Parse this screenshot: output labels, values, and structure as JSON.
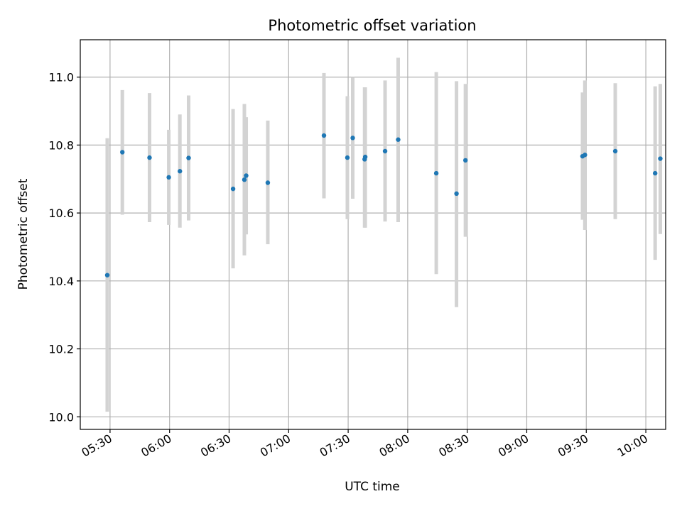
{
  "chart_data": {
    "type": "scatter",
    "title": "Photometric offset variation",
    "xlabel": "UTC time",
    "ylabel": "Photometric offset",
    "x_tick_labels": [
      "05:30",
      "06:00",
      "06:30",
      "07:00",
      "07:30",
      "08:00",
      "08:30",
      "09:00",
      "09:30",
      "10:00"
    ],
    "x_tick_minutes": [
      330,
      360,
      390,
      420,
      450,
      480,
      510,
      540,
      570,
      600
    ],
    "xlim_minutes": [
      315,
      610
    ],
    "y_tick_labels": [
      "10.0",
      "10.2",
      "10.4",
      "10.6",
      "10.8",
      "11.0"
    ],
    "y_ticks": [
      10.0,
      10.2,
      10.4,
      10.6,
      10.8,
      11.0
    ],
    "ylim": [
      9.963,
      11.11
    ],
    "grid": true,
    "point_color": "#1f77b4",
    "errorbar_color": "#d3d3d3",
    "points": [
      {
        "t": 328.6,
        "y": 10.417,
        "lo": 10.015,
        "hi": 10.82
      },
      {
        "t": 336.2,
        "y": 10.779,
        "lo": 10.595,
        "hi": 10.962
      },
      {
        "t": 349.9,
        "y": 10.763,
        "lo": 10.573,
        "hi": 10.953
      },
      {
        "t": 359.6,
        "y": 10.705,
        "lo": 10.565,
        "hi": 10.845
      },
      {
        "t": 365.2,
        "y": 10.723,
        "lo": 10.557,
        "hi": 10.89
      },
      {
        "t": 369.6,
        "y": 10.762,
        "lo": 10.578,
        "hi": 10.946
      },
      {
        "t": 392.0,
        "y": 10.671,
        "lo": 10.437,
        "hi": 10.906
      },
      {
        "t": 397.7,
        "y": 10.698,
        "lo": 10.475,
        "hi": 10.921
      },
      {
        "t": 398.6,
        "y": 10.71,
        "lo": 10.537,
        "hi": 10.882
      },
      {
        "t": 409.5,
        "y": 10.689,
        "lo": 10.508,
        "hi": 10.872
      },
      {
        "t": 437.8,
        "y": 10.828,
        "lo": 10.643,
        "hi": 11.012
      },
      {
        "t": 449.6,
        "y": 10.763,
        "lo": 10.582,
        "hi": 10.944
      },
      {
        "t": 452.3,
        "y": 10.821,
        "lo": 10.642,
        "hi": 11.0
      },
      {
        "t": 458.3,
        "y": 10.758,
        "lo": 10.557,
        "hi": 10.97
      },
      {
        "t": 458.6,
        "y": 10.765,
        "lo": 10.557,
        "hi": 10.97
      },
      {
        "t": 468.6,
        "y": 10.782,
        "lo": 10.575,
        "hi": 10.99
      },
      {
        "t": 475.2,
        "y": 10.816,
        "lo": 10.573,
        "hi": 11.057
      },
      {
        "t": 494.4,
        "y": 10.717,
        "lo": 10.42,
        "hi": 11.015
      },
      {
        "t": 504.6,
        "y": 10.657,
        "lo": 10.323,
        "hi": 10.988
      },
      {
        "t": 509.1,
        "y": 10.755,
        "lo": 10.53,
        "hi": 10.98
      },
      {
        "t": 568.1,
        "y": 10.767,
        "lo": 10.58,
        "hi": 10.955
      },
      {
        "t": 569.3,
        "y": 10.771,
        "lo": 10.55,
        "hi": 10.99
      },
      {
        "t": 584.6,
        "y": 10.782,
        "lo": 10.582,
        "hi": 10.982
      },
      {
        "t": 604.7,
        "y": 10.717,
        "lo": 10.462,
        "hi": 10.973
      },
      {
        "t": 607.3,
        "y": 10.76,
        "lo": 10.538,
        "hi": 10.98
      }
    ]
  }
}
